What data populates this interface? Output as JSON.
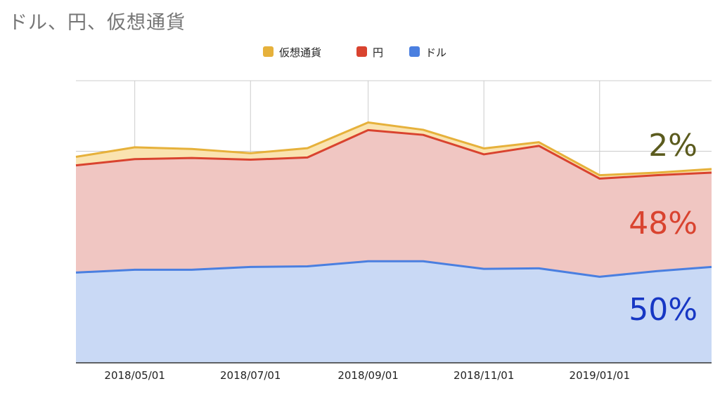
{
  "chart_data": {
    "type": "area",
    "stacked": true,
    "title": "ドル、円、仮想通貨",
    "x": [
      "2018-03-31",
      "2018-05-01",
      "2018-05-31",
      "2018-07-01",
      "2018-07-31",
      "2018-09-01",
      "2018-09-30",
      "2018-11-01",
      "2018-11-30",
      "2019-01-01",
      "2019-01-31",
      "2019-03-01"
    ],
    "series": [
      {
        "name": "ドル",
        "color": "#4a7fe0",
        "fill": "#c9d9f5",
        "values": [
          32,
          33,
          33,
          34,
          34.2,
          36,
          36,
          33.3,
          33.5,
          30.5,
          32.5,
          34
        ]
      },
      {
        "name": "円",
        "color": "#d9432f",
        "fill": "#f0c6c2",
        "values": [
          38,
          39.2,
          39.6,
          38,
          38.6,
          46.5,
          44.8,
          40.6,
          43.4,
          34.8,
          34,
          33.4
        ]
      },
      {
        "name": "仮想通貨",
        "color": "#e6b13b",
        "fill": "#fae3b0",
        "values": [
          3,
          4.2,
          3.2,
          2.3,
          3.3,
          2.7,
          1.8,
          2.1,
          1.3,
          1.2,
          0.9,
          1.3
        ]
      }
    ],
    "x_tick_labels": [
      "2018/05/01",
      "2018/07/01",
      "2018/09/01",
      "2018/11/01",
      "2019/01/01"
    ],
    "legend_order": [
      "仮想通貨",
      "円",
      "ドル"
    ],
    "legend_position": "top",
    "ylim": [
      0,
      100
    ],
    "grid": true,
    "annotations": [
      {
        "text": "2%",
        "series": "仮想通貨",
        "color": "#5b5b1e"
      },
      {
        "text": "48%",
        "series": "円",
        "color": "#d9432f"
      },
      {
        "text": "50%",
        "series": "ドル",
        "color": "#1737c4"
      }
    ]
  }
}
